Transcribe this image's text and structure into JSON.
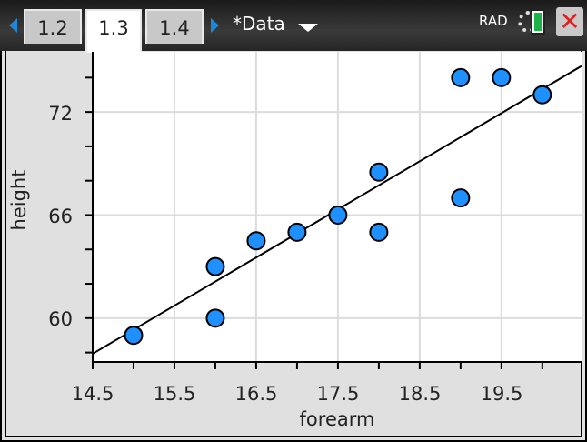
{
  "topbar": {
    "tabs": [
      {
        "label": "1.2",
        "active": false
      },
      {
        "label": "1.3",
        "active": true
      },
      {
        "label": "1.4",
        "active": false
      }
    ],
    "document_title": "*Data",
    "angle_mode": "RAD",
    "icons": [
      "tab-left-arrow-icon",
      "tab-right-arrow-icon",
      "dropdown-caret-icon",
      "settings-gear-icon",
      "battery-icon",
      "close-icon"
    ]
  },
  "colors": {
    "point_fill": "#1e90ff",
    "accent_arrow": "#1e88d8",
    "battery": "#1db34a",
    "close": "#e02020",
    "background": "#e0e0e0"
  },
  "chart_data": {
    "type": "scatter",
    "xlabel": "forearm",
    "ylabel": "height",
    "xlim": [
      14.5,
      20.48
    ],
    "ylim": [
      57.45,
      75.5
    ],
    "x_tick_labels": [
      "14.5",
      "15.5",
      "16.5",
      "17.5",
      "18.5",
      "19.5"
    ],
    "y_tick_labels": [
      "60",
      "66",
      "72"
    ],
    "grid": true,
    "points": [
      {
        "x": 15,
        "y": 59
      },
      {
        "x": 16,
        "y": 63
      },
      {
        "x": 16,
        "y": 60
      },
      {
        "x": 16.5,
        "y": 64.5
      },
      {
        "x": 17,
        "y": 65
      },
      {
        "x": 17.5,
        "y": 66
      },
      {
        "x": 18,
        "y": 68.5
      },
      {
        "x": 18,
        "y": 65
      },
      {
        "x": 19,
        "y": 67
      },
      {
        "x": 19,
        "y": 74
      },
      {
        "x": 19.5,
        "y": 74
      },
      {
        "x": 20,
        "y": 73
      }
    ],
    "regression_line": {
      "slope": 2.8,
      "intercept": 17.33
    }
  }
}
